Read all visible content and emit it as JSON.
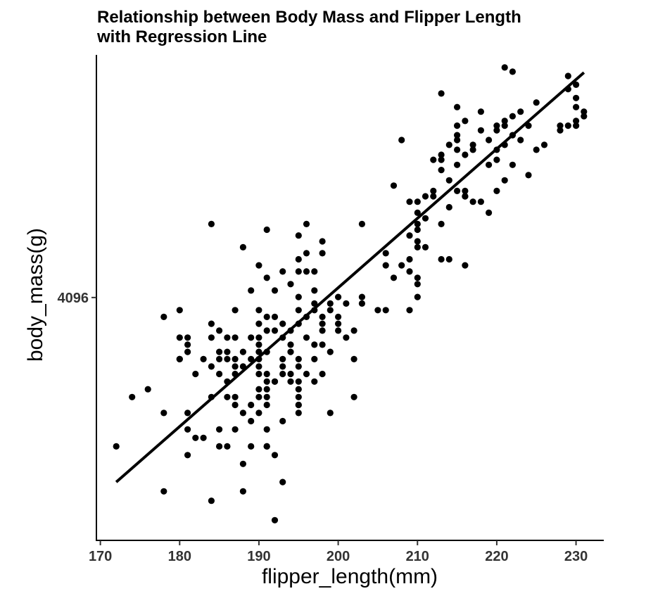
{
  "chart_data": {
    "type": "scatter",
    "title": [
      "Relationship between Body Mass and Flipper Length",
      "with Regression Line"
    ],
    "xlabel": "flipper_length(mm)",
    "ylabel": "body_mass(g)",
    "xlim": [
      169.5,
      233.5
    ],
    "ylim": [
      2600,
      6450
    ],
    "x_ticks": [
      170,
      180,
      190,
      200,
      210,
      220,
      230
    ],
    "y_ticks": [
      4096
    ],
    "y_tick_labels": [
      "4096"
    ],
    "y_scale": "log2",
    "grid": false,
    "legend": "none",
    "colors": {
      "points": "#000000",
      "line": "#000000"
    },
    "regression_line": {
      "x": [
        172,
        231
      ],
      "y": [
        2900,
        6240
      ]
    },
    "points": [
      [
        172,
        3100
      ],
      [
        174,
        3400
      ],
      [
        176,
        3450
      ],
      [
        178,
        3300
      ],
      [
        178,
        3950
      ],
      [
        178,
        2850
      ],
      [
        180,
        3650
      ],
      [
        180,
        3650
      ],
      [
        180,
        3800
      ],
      [
        180,
        4000
      ],
      [
        181,
        3750
      ],
      [
        181,
        3700
      ],
      [
        181,
        3800
      ],
      [
        181,
        3200
      ],
      [
        181,
        3050
      ],
      [
        181,
        3300
      ],
      [
        182,
        3550
      ],
      [
        182,
        3150
      ],
      [
        183,
        3650
      ],
      [
        183,
        3150
      ],
      [
        184,
        3600
      ],
      [
        184,
        3400
      ],
      [
        184,
        4700
      ],
      [
        184,
        3800
      ],
      [
        184,
        2800
      ],
      [
        184,
        3900
      ],
      [
        185,
        3100
      ],
      [
        185,
        3650
      ],
      [
        185,
        3550
      ],
      [
        185,
        3700
      ],
      [
        185,
        3850
      ],
      [
        185,
        3200
      ],
      [
        186,
        3800
      ],
      [
        186,
        3700
      ],
      [
        186,
        3650
      ],
      [
        186,
        3500
      ],
      [
        186,
        3400
      ],
      [
        186,
        3100
      ],
      [
        187,
        3200
      ],
      [
        187,
        3350
      ],
      [
        187,
        3550
      ],
      [
        187,
        3600
      ],
      [
        187,
        3650
      ],
      [
        187,
        3800
      ],
      [
        187,
        4000
      ],
      [
        187,
        3400
      ],
      [
        188,
        3000
      ],
      [
        188,
        3600
      ],
      [
        188,
        3300
      ],
      [
        188,
        3700
      ],
      [
        188,
        2850
      ],
      [
        188,
        4500
      ],
      [
        189,
        3650
      ],
      [
        189,
        3800
      ],
      [
        189,
        3350
      ],
      [
        189,
        3250
      ],
      [
        189,
        3100
      ],
      [
        189,
        4150
      ],
      [
        190,
        3400
      ],
      [
        190,
        3650
      ],
      [
        190,
        3800
      ],
      [
        190,
        3700
      ],
      [
        190,
        3550
      ],
      [
        190,
        3450
      ],
      [
        190,
        4350
      ],
      [
        190,
        4000
      ],
      [
        190,
        3900
      ],
      [
        190,
        3600
      ],
      [
        190,
        3300
      ],
      [
        190,
        3750
      ],
      [
        191,
        3200
      ],
      [
        191,
        3500
      ],
      [
        191,
        3350
      ],
      [
        191,
        3850
      ],
      [
        191,
        3700
      ],
      [
        191,
        3950
      ],
      [
        191,
        3100
      ],
      [
        191,
        4650
      ],
      [
        191,
        4250
      ],
      [
        191,
        3100
      ],
      [
        191,
        3450
      ],
      [
        191,
        3550
      ],
      [
        191,
        3400
      ],
      [
        192,
        2700
      ],
      [
        192,
        3050
      ],
      [
        192,
        4150
      ],
      [
        192,
        3850
      ],
      [
        192,
        3500
      ],
      [
        192,
        3500
      ],
      [
        192,
        3950
      ],
      [
        193,
        3800
      ],
      [
        193,
        3650
      ],
      [
        193,
        3550
      ],
      [
        193,
        3600
      ],
      [
        193,
        3250
      ],
      [
        193,
        2900
      ],
      [
        193,
        4300
      ],
      [
        193,
        3900
      ],
      [
        194,
        3750
      ],
      [
        194,
        4200
      ],
      [
        194,
        3550
      ],
      [
        194,
        3850
      ],
      [
        194,
        3500
      ],
      [
        194,
        3700
      ],
      [
        195,
        3450
      ],
      [
        195,
        3350
      ],
      [
        195,
        3400
      ],
      [
        195,
        3650
      ],
      [
        195,
        3900
      ],
      [
        195,
        3500
      ],
      [
        195,
        3600
      ],
      [
        195,
        4100
      ],
      [
        195,
        4400
      ],
      [
        195,
        4600
      ],
      [
        195,
        4000
      ],
      [
        195,
        3350
      ],
      [
        195,
        4300
      ],
      [
        195,
        3300
      ],
      [
        196,
        4700
      ],
      [
        196,
        4450
      ],
      [
        196,
        3950
      ],
      [
        196,
        4300
      ],
      [
        196,
        3550
      ],
      [
        196,
        3800
      ],
      [
        197,
        3500
      ],
      [
        197,
        4150
      ],
      [
        197,
        4000
      ],
      [
        197,
        3750
      ],
      [
        197,
        3650
      ],
      [
        197,
        4050
      ],
      [
        197,
        4300
      ],
      [
        198,
        3850
      ],
      [
        198,
        3950
      ],
      [
        198,
        3550
      ],
      [
        198,
        4550
      ],
      [
        198,
        4450
      ],
      [
        198,
        3900
      ],
      [
        198,
        3750
      ],
      [
        199,
        4000
      ],
      [
        199,
        4050
      ],
      [
        199,
        3700
      ],
      [
        199,
        3300
      ],
      [
        200,
        3900
      ],
      [
        200,
        3850
      ],
      [
        200,
        3950
      ],
      [
        200,
        4100
      ],
      [
        201,
        4050
      ],
      [
        201,
        3800
      ],
      [
        202,
        3650
      ],
      [
        202,
        3850
      ],
      [
        202,
        3400
      ],
      [
        203,
        4700
      ],
      [
        203,
        4100
      ],
      [
        203,
        4050
      ],
      [
        205,
        4000
      ],
      [
        206,
        4350
      ],
      [
        206,
        4450
      ],
      [
        206,
        4000
      ],
      [
        207,
        5050
      ],
      [
        207,
        4250
      ],
      [
        208,
        5500
      ],
      [
        208,
        4350
      ],
      [
        209,
        4600
      ],
      [
        209,
        4400
      ],
      [
        209,
        4300
      ],
      [
        209,
        4000
      ],
      [
        209,
        4900
      ],
      [
        210,
        4250
      ],
      [
        210,
        4100
      ],
      [
        210,
        4200
      ],
      [
        210,
        4700
      ],
      [
        210,
        4550
      ],
      [
        210,
        4900
      ],
      [
        210,
        4650
      ],
      [
        210,
        4500
      ],
      [
        210,
        4800
      ],
      [
        211,
        4950
      ],
      [
        211,
        4500
      ],
      [
        211,
        4750
      ],
      [
        212,
        5000
      ],
      [
        212,
        4950
      ],
      [
        212,
        5300
      ],
      [
        213,
        4700
      ],
      [
        213,
        5300
      ],
      [
        213,
        5350
      ],
      [
        213,
        6000
      ],
      [
        213,
        5200
      ],
      [
        213,
        4400
      ],
      [
        214,
        4850
      ],
      [
        214,
        5450
      ],
      [
        214,
        5100
      ],
      [
        214,
        4400
      ],
      [
        215,
        5250
      ],
      [
        215,
        5650
      ],
      [
        215,
        5550
      ],
      [
        215,
        5400
      ],
      [
        215,
        5000
      ],
      [
        215,
        5500
      ],
      [
        215,
        5850
      ],
      [
        216,
        5000
      ],
      [
        216,
        4350
      ],
      [
        216,
        4950
      ],
      [
        216,
        5350
      ],
      [
        216,
        5700
      ],
      [
        216,
        4950
      ],
      [
        217,
        4900
      ],
      [
        217,
        5450
      ],
      [
        217,
        5400
      ],
      [
        218,
        4900
      ],
      [
        218,
        5600
      ],
      [
        218,
        5800
      ],
      [
        219,
        5250
      ],
      [
        219,
        4800
      ],
      [
        219,
        5500
      ],
      [
        220,
        5400
      ],
      [
        220,
        5300
      ],
      [
        220,
        5650
      ],
      [
        220,
        5000
      ],
      [
        220,
        5600
      ],
      [
        221,
        5650
      ],
      [
        221,
        5100
      ],
      [
        221,
        5700
      ],
      [
        221,
        6300
      ],
      [
        221,
        5450
      ],
      [
        222,
        5250
      ],
      [
        222,
        5750
      ],
      [
        222,
        6250
      ],
      [
        222,
        5550
      ],
      [
        223,
        5500
      ],
      [
        223,
        5800
      ],
      [
        224,
        5650
      ],
      [
        224,
        5150
      ],
      [
        225,
        5400
      ],
      [
        226,
        5450
      ],
      [
        228,
        5600
      ],
      [
        228,
        5650
      ],
      [
        229,
        6050
      ],
      [
        229,
        6200
      ],
      [
        229,
        5650
      ],
      [
        230,
        5850
      ],
      [
        230,
        5950
      ],
      [
        230,
        6100
      ],
      [
        230,
        5700
      ],
      [
        230,
        5650
      ],
      [
        231,
        5800
      ],
      [
        231,
        5750
      ],
      [
        225,
        5900
      ]
    ]
  }
}
